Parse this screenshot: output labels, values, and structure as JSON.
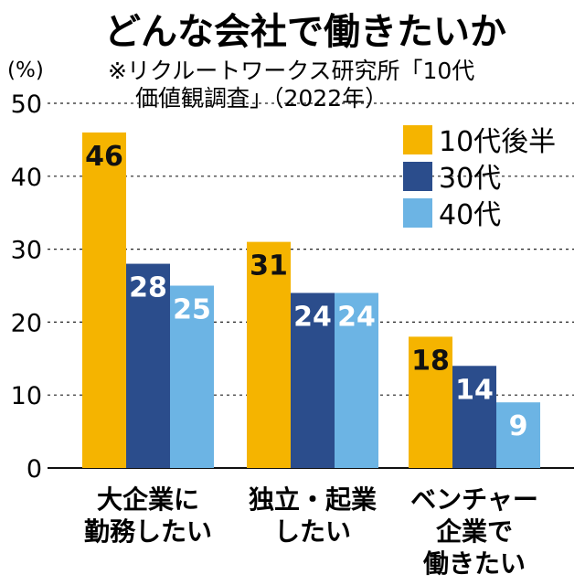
{
  "chart_data": {
    "type": "bar",
    "title": "どんな会社で働きたいか",
    "source_lines": [
      "※リクルートワークス研究所「10代",
      "価値観調査」（2022年）"
    ],
    "ylabel": "(%)",
    "ylim": [
      0,
      50
    ],
    "yticks": [
      0,
      10,
      20,
      30,
      40,
      50
    ],
    "grid": true,
    "legend_position": "top-right",
    "categories": [
      [
        "大企業に",
        "勤務したい"
      ],
      [
        "独立・起業",
        "したい"
      ],
      [
        "ベンチャー",
        "企業で",
        "働きたい"
      ]
    ],
    "series": [
      {
        "name": "10代後半",
        "color": "#f5b400",
        "label_color": "#111111",
        "values": [
          46,
          31,
          18
        ]
      },
      {
        "name": "30代",
        "color": "#2b4d8c",
        "label_color": "#ffffff",
        "values": [
          28,
          24,
          14
        ]
      },
      {
        "name": "40代",
        "color": "#6cb4e4",
        "label_color": "#ffffff",
        "values": [
          25,
          24,
          9
        ]
      }
    ]
  }
}
